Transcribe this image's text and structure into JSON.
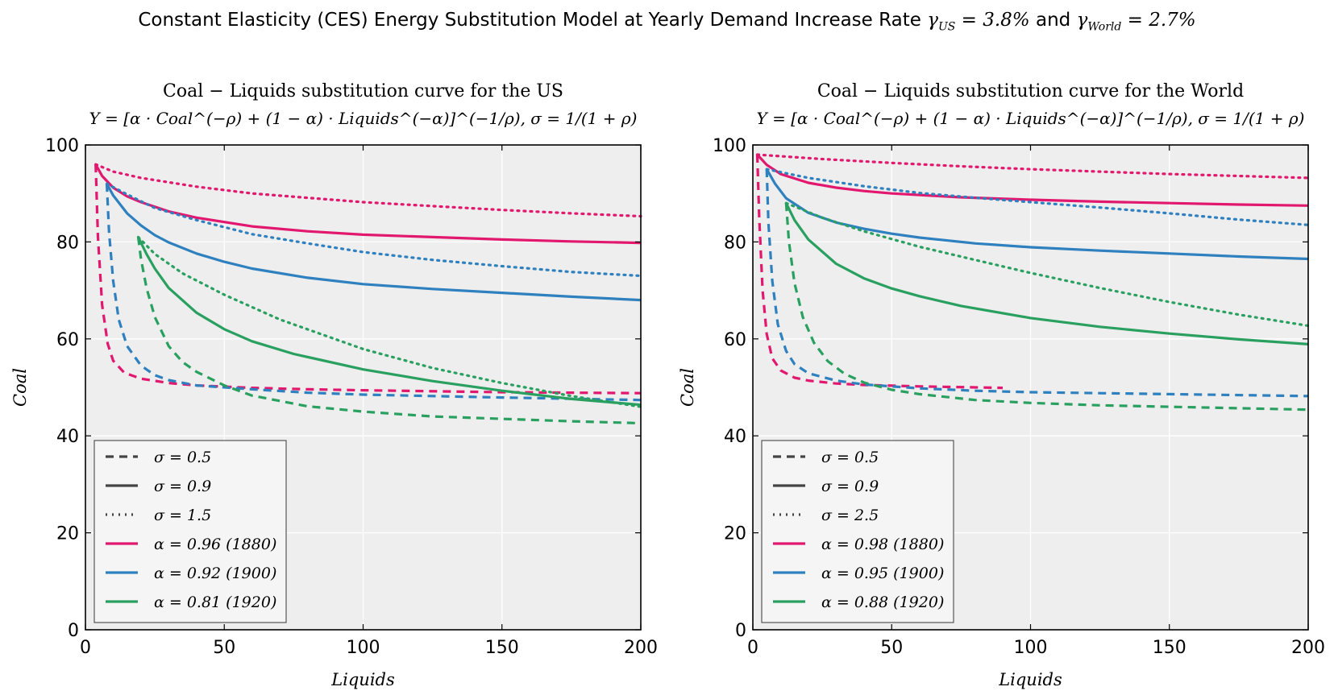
{
  "figure_title": {
    "prefix": "Constant Elasticity (CES) Energy Substitution Model at Yearly Demand Increase Rate ",
    "gamma_us": "3.8%",
    "connector": " and ",
    "gamma_world": "2.7%"
  },
  "colors": {
    "magenta": "#e2186f",
    "blue": "#2e80bf",
    "green": "#2aa060",
    "plot_bg": "#eeeeee",
    "grid": "#ffffff",
    "legend_line": "#444444"
  },
  "chart_data": [
    {
      "type": "line",
      "title_line1": "Coal − Liquids substitution curve for the US",
      "title_line2": "Y = [α · Coal^(−ρ) + (1 − α) · Liquids^(−α)]^(−1/ρ), σ = 1/(1 + ρ)",
      "xlabel": "Liquids",
      "ylabel": "Coal",
      "xlim": [
        0,
        200
      ],
      "ylim": [
        0,
        100
      ],
      "xticks": [
        "0",
        "50",
        "100",
        "150",
        "200"
      ],
      "yticks": [
        "0",
        "20",
        "40",
        "60",
        "80",
        "100"
      ],
      "grid": true,
      "legend_position": "lower-left",
      "legend": [
        {
          "label": "σ = 0.5",
          "style": "dashed",
          "color": "legend_line"
        },
        {
          "label": "σ = 0.9",
          "style": "solid",
          "color": "legend_line"
        },
        {
          "label": "σ = 1.5",
          "style": "dotted",
          "color": "legend_line"
        },
        {
          "label": "α = 0.96 (1880)",
          "style": "solid",
          "color": "magenta"
        },
        {
          "label": "α = 0.92 (1900)",
          "style": "solid",
          "color": "blue"
        },
        {
          "label": "α = 0.81 (1920)",
          "style": "solid",
          "color": "green"
        }
      ],
      "series": [
        {
          "alpha": "0.96",
          "sigma": "0.5",
          "color": "magenta",
          "style": "dashed",
          "x": [
            3.7,
            4.5,
            6,
            8,
            10,
            14,
            20,
            30,
            40,
            60,
            80,
            100,
            150,
            200
          ],
          "y": [
            96,
            81,
            67,
            59,
            55.5,
            53,
            51.8,
            50.9,
            50.4,
            49.9,
            49.6,
            49.4,
            49.0,
            48.8
          ]
        },
        {
          "alpha": "0.96",
          "sigma": "0.9",
          "color": "magenta",
          "style": "solid",
          "x": [
            3.7,
            6,
            10,
            15,
            20,
            30,
            40,
            60,
            80,
            100,
            125,
            150,
            175,
            200
          ],
          "y": [
            96,
            93.6,
            91.2,
            89.4,
            88.2,
            86.3,
            85.0,
            83.2,
            82.2,
            81.5,
            81.0,
            80.5,
            80.1,
            79.8
          ]
        },
        {
          "alpha": "0.96",
          "sigma": "1.5",
          "color": "magenta",
          "style": "dotted",
          "x": [
            3.7,
            10,
            20,
            40,
            60,
            80,
            100,
            125,
            150,
            175,
            200
          ],
          "y": [
            96,
            94.5,
            93.2,
            91.4,
            90.0,
            89.1,
            88.2,
            87.4,
            86.6,
            85.9,
            85.3
          ]
        },
        {
          "alpha": "0.92",
          "sigma": "0.5",
          "color": "blue",
          "style": "dashed",
          "x": [
            7.7,
            8.5,
            10,
            12,
            15,
            20,
            25,
            30,
            40,
            60,
            80,
            100,
            150,
            200
          ],
          "y": [
            92,
            82,
            72,
            64,
            58.5,
            54.5,
            52.5,
            51.5,
            50.4,
            49.6,
            48.9,
            48.5,
            47.9,
            47.4
          ]
        },
        {
          "alpha": "0.92",
          "sigma": "0.9",
          "color": "blue",
          "style": "solid",
          "x": [
            7.7,
            10,
            15,
            20,
            25,
            30,
            40,
            50,
            60,
            80,
            100,
            125,
            150,
            175,
            200
          ],
          "y": [
            92,
            89.6,
            85.9,
            83.4,
            81.4,
            79.9,
            77.6,
            75.9,
            74.5,
            72.6,
            71.3,
            70.3,
            69.5,
            68.7,
            68.0
          ]
        },
        {
          "alpha": "0.92",
          "sigma": "1.5",
          "color": "blue",
          "style": "dotted",
          "x": [
            7.7,
            15,
            25,
            40,
            60,
            80,
            100,
            125,
            150,
            175,
            200
          ],
          "y": [
            92,
            89.8,
            87.0,
            84.5,
            81.6,
            79.7,
            77.9,
            76.3,
            75.0,
            73.8,
            73.0
          ]
        },
        {
          "alpha": "0.81",
          "sigma": "0.5",
          "color": "green",
          "style": "dashed",
          "x": [
            19,
            20,
            22,
            25,
            30,
            35,
            40,
            50,
            60,
            80,
            100,
            125,
            150,
            175,
            200
          ],
          "y": [
            81,
            76.5,
            70.5,
            64.5,
            58.5,
            55.2,
            53.2,
            50.4,
            48.3,
            46.1,
            45.0,
            44.0,
            43.5,
            43.0,
            42.6
          ]
        },
        {
          "alpha": "0.81",
          "sigma": "0.9",
          "color": "green",
          "style": "solid",
          "x": [
            19,
            22,
            25,
            30,
            40,
            50,
            60,
            75,
            100,
            125,
            150,
            175,
            200
          ],
          "y": [
            81,
            77.5,
            74.5,
            70.5,
            65.4,
            62.0,
            59.5,
            56.9,
            53.7,
            51.3,
            49.3,
            47.6,
            46.4
          ]
        },
        {
          "alpha": "0.81",
          "sigma": "1.5",
          "color": "green",
          "style": "dotted",
          "x": [
            19,
            25,
            35,
            50,
            70,
            100,
            125,
            150,
            175,
            200
          ],
          "y": [
            81,
            77.5,
            73.5,
            69.1,
            64.0,
            57.9,
            54.0,
            50.9,
            48.2,
            46.0
          ]
        }
      ]
    },
    {
      "type": "line",
      "title_line1": "Coal − Liquids substitution curve for the World",
      "title_line2": "Y = [α · Coal^(−ρ) + (1 − α) · Liquids^(−α)]^(−1/ρ), σ = 1/(1 + ρ)",
      "xlabel": "Liquids",
      "ylabel": "Coal",
      "xlim": [
        0,
        200
      ],
      "ylim": [
        0,
        100
      ],
      "xticks": [
        "0",
        "50",
        "100",
        "150",
        "200"
      ],
      "yticks": [
        "0",
        "20",
        "40",
        "60",
        "80",
        "100"
      ],
      "grid": true,
      "legend_position": "lower-left",
      "legend": [
        {
          "label": "σ = 0.5",
          "style": "dashed",
          "color": "legend_line"
        },
        {
          "label": "σ = 0.9",
          "style": "solid",
          "color": "legend_line"
        },
        {
          "label": "σ = 2.5",
          "style": "dotted",
          "color": "legend_line"
        },
        {
          "label": "α = 0.98 (1880)",
          "style": "solid",
          "color": "magenta"
        },
        {
          "label": "α = 0.95 (1900)",
          "style": "solid",
          "color": "blue"
        },
        {
          "label": "α = 0.88 (1920)",
          "style": "solid",
          "color": "green"
        }
      ],
      "series": [
        {
          "alpha": "0.98",
          "sigma": "0.5",
          "color": "magenta",
          "style": "dashed",
          "x": [
            1.6,
            2.3,
            3.5,
            5,
            7,
            10,
            15,
            20,
            30,
            40,
            60,
            80,
            90
          ],
          "y": [
            98,
            85,
            70,
            61,
            56,
            53.5,
            52,
            51.4,
            50.8,
            50.5,
            50.2,
            50.0,
            49.9
          ]
        },
        {
          "alpha": "0.98",
          "sigma": "0.9",
          "color": "magenta",
          "style": "solid",
          "x": [
            1.6,
            5,
            10,
            20,
            30,
            40,
            50,
            75,
            100,
            125,
            150,
            175,
            200
          ],
          "y": [
            98,
            95.9,
            94.0,
            92.2,
            91.2,
            90.5,
            90.0,
            89.2,
            88.7,
            88.3,
            88.0,
            87.7,
            87.5
          ]
        },
        {
          "alpha": "0.98",
          "sigma": "2.5",
          "color": "magenta",
          "style": "dotted",
          "x": [
            1.6,
            25,
            50,
            75,
            100,
            125,
            150,
            175,
            200
          ],
          "y": [
            98,
            97.1,
            96.3,
            95.6,
            95.0,
            94.5,
            94.0,
            93.6,
            93.2
          ]
        },
        {
          "alpha": "0.95",
          "sigma": "0.5",
          "color": "blue",
          "style": "dashed",
          "x": [
            5,
            5.6,
            7,
            9,
            12,
            15,
            20,
            30,
            40,
            60,
            80,
            100,
            150,
            200
          ],
          "y": [
            95,
            84,
            72,
            63,
            57.5,
            54.8,
            52.9,
            51.4,
            50.6,
            49.8,
            49.3,
            49.0,
            48.6,
            48.2
          ]
        },
        {
          "alpha": "0.95",
          "sigma": "0.9",
          "color": "blue",
          "style": "solid",
          "x": [
            5,
            8,
            12,
            20,
            30,
            40,
            50,
            60,
            80,
            100,
            125,
            150,
            175,
            200
          ],
          "y": [
            95,
            92.0,
            89.0,
            86.0,
            84.0,
            82.7,
            81.7,
            80.9,
            79.7,
            78.9,
            78.2,
            77.6,
            77.0,
            76.5
          ]
        },
        {
          "alpha": "0.95",
          "sigma": "2.5",
          "color": "blue",
          "style": "dotted",
          "x": [
            5,
            20,
            40,
            60,
            80,
            100,
            125,
            150,
            175,
            200
          ],
          "y": [
            95,
            93.2,
            91.5,
            90.1,
            89.1,
            88.2,
            87.1,
            85.9,
            84.6,
            83.5
          ]
        },
        {
          "alpha": "0.88",
          "sigma": "0.5",
          "color": "green",
          "style": "dashed",
          "x": [
            12,
            13,
            15,
            18,
            22,
            27,
            33,
            40,
            50,
            60,
            80,
            100,
            125,
            150,
            175,
            200
          ],
          "y": [
            88,
            80,
            71.5,
            64.5,
            59.2,
            55.4,
            52.8,
            51.0,
            49.5,
            48.6,
            47.4,
            46.8,
            46.3,
            46.0,
            45.7,
            45.4
          ]
        },
        {
          "alpha": "0.88",
          "sigma": "0.9",
          "color": "green",
          "style": "solid",
          "x": [
            12,
            15,
            20,
            30,
            40,
            50,
            60,
            75,
            100,
            125,
            150,
            175,
            200
          ],
          "y": [
            88,
            84.5,
            80.5,
            75.5,
            72.5,
            70.4,
            68.8,
            66.8,
            64.3,
            62.5,
            61.1,
            59.9,
            58.9
          ]
        },
        {
          "alpha": "0.88",
          "sigma": "2.5",
          "color": "green",
          "style": "dotted",
          "x": [
            12,
            25,
            40,
            60,
            80,
            100,
            125,
            150,
            175,
            200
          ],
          "y": [
            88,
            85.0,
            82.2,
            79.0,
            76.3,
            73.6,
            70.5,
            67.6,
            65.0,
            62.7
          ]
        }
      ]
    }
  ]
}
